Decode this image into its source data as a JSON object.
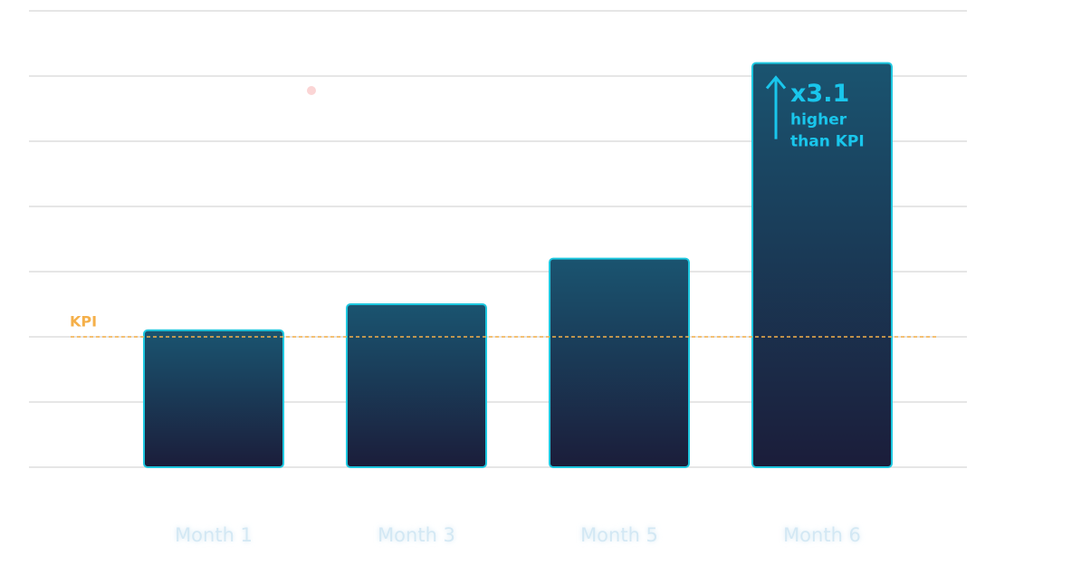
{
  "chart_data": {
    "type": "bar",
    "categories": [
      "Month 1",
      "Month 3",
      "Month 5",
      "Month 6"
    ],
    "values": [
      2.1,
      2.5,
      3.2,
      6.2
    ],
    "color": "#1ec8e0",
    "ylim": [
      0,
      7
    ],
    "yticks": [
      0,
      1,
      2,
      3,
      4,
      5,
      6,
      7
    ],
    "grid": true,
    "kpi": {
      "label": "KPI",
      "value": 2,
      "color": "#f5b04a"
    },
    "annotation": {
      "multiplier": "x3.1",
      "line1": "higher",
      "line2": "than KPI"
    }
  }
}
